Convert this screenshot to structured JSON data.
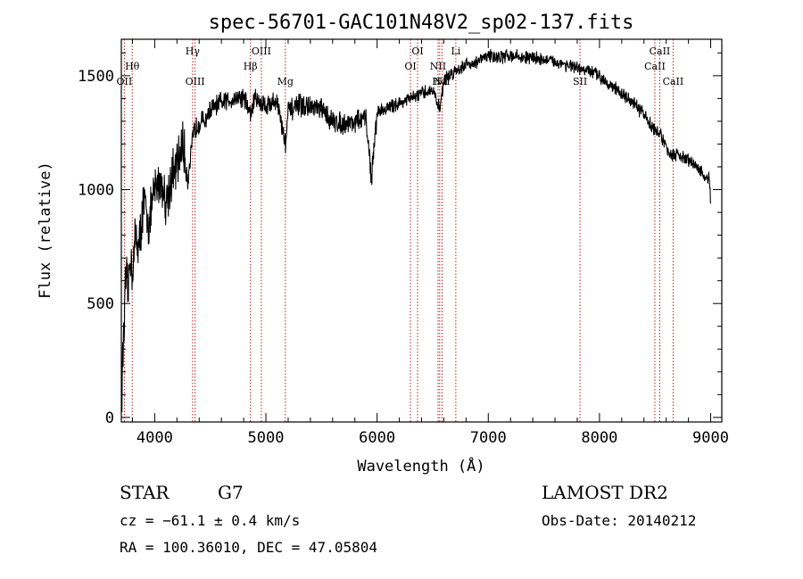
{
  "chart_data": {
    "type": "line",
    "title": "spec-56701-GAC101N48V2_sp02-137.fits",
    "xlabel": "Wavelength (Å)",
    "ylabel": "Flux (relative)",
    "xlim": [
      3700,
      9100
    ],
    "ylim": [
      -20,
      1660
    ],
    "xticks": [
      4000,
      5000,
      6000,
      7000,
      8000,
      9000
    ],
    "yticks": [
      0,
      500,
      1000,
      1500
    ],
    "grid": false,
    "series": [
      {
        "x": [
          3700,
          3720,
          3740,
          3760,
          3780,
          3800,
          3830,
          3860,
          3900,
          3950,
          4000,
          4050,
          4100,
          4150,
          4200,
          4250,
          4300,
          4350,
          4400,
          4450,
          4500,
          4600,
          4700,
          4800,
          4861,
          4900,
          5000,
          5100,
          5175,
          5200,
          5300,
          5400,
          5500,
          5600,
          5700,
          5800,
          5900,
          5950,
          6000,
          6100,
          6200,
          6300,
          6400,
          6500,
          6563,
          6600,
          6700,
          6800,
          6900,
          7000,
          7100,
          7200,
          7300,
          7400,
          7500,
          7600,
          7700,
          7800,
          7900,
          8000,
          8100,
          8200,
          8300,
          8400,
          8498,
          8542,
          8600,
          8662,
          8700,
          8800,
          8900,
          8960,
          8990,
          9000
        ],
        "y": [
          60,
          350,
          600,
          560,
          700,
          650,
          800,
          750,
          950,
          850,
          1000,
          1050,
          950,
          1050,
          1100,
          1200,
          1050,
          1250,
          1300,
          1300,
          1350,
          1380,
          1400,
          1410,
          1330,
          1400,
          1370,
          1390,
          1200,
          1340,
          1370,
          1360,
          1350,
          1300,
          1290,
          1300,
          1310,
          1050,
          1340,
          1360,
          1380,
          1400,
          1420,
          1440,
          1350,
          1480,
          1520,
          1550,
          1560,
          1590,
          1580,
          1590,
          1580,
          1580,
          1570,
          1560,
          1550,
          1530,
          1520,
          1500,
          1460,
          1420,
          1380,
          1330,
          1260,
          1250,
          1180,
          1150,
          1150,
          1130,
          1090,
          1040,
          1060,
          900
        ]
      }
    ],
    "lines": [
      {
        "name": "OII",
        "wavelength": 3727,
        "row": "low"
      },
      {
        "name": "Hθ",
        "wavelength": 3798,
        "row": "mid"
      },
      {
        "name": "Hγ",
        "wavelength": 4341,
        "row": "top"
      },
      {
        "name": "OIII",
        "wavelength": 4363,
        "row": "low"
      },
      {
        "name": "Hβ",
        "wavelength": 4861,
        "row": "mid"
      },
      {
        "name": "OIII",
        "wavelength": 4959,
        "row": "top"
      },
      {
        "name": "Mg",
        "wavelength": 5175,
        "row": "low"
      },
      {
        "name": "OI",
        "wavelength": 6300,
        "row": "mid"
      },
      {
        "name": "OI",
        "wavelength": 6364,
        "row": "top"
      },
      {
        "name": "NII",
        "wavelength": 6548,
        "row": "mid"
      },
      {
        "name": "Hα",
        "wavelength": 6563,
        "row": "low"
      },
      {
        "name": "NII",
        "wavelength": 6584,
        "row": "low"
      },
      {
        "name": "Li",
        "wavelength": 6708,
        "row": "top"
      },
      {
        "name": "SII",
        "wavelength": 7825,
        "row": "low"
      },
      {
        "name": "CaII",
        "wavelength": 8498,
        "row": "mid"
      },
      {
        "name": "CaII",
        "wavelength": 8542,
        "row": "top"
      },
      {
        "name": "CaII",
        "wavelength": 8662,
        "row": "low"
      }
    ],
    "info": {
      "class": "STAR",
      "subclass": "G7",
      "survey": "LAMOST DR2",
      "cz": "cz = −61.1 ± 0.4 km/s",
      "obs_date": "Obs-Date: 20140212",
      "coords": "RA = 100.36010, DEC =  47.05804"
    }
  }
}
